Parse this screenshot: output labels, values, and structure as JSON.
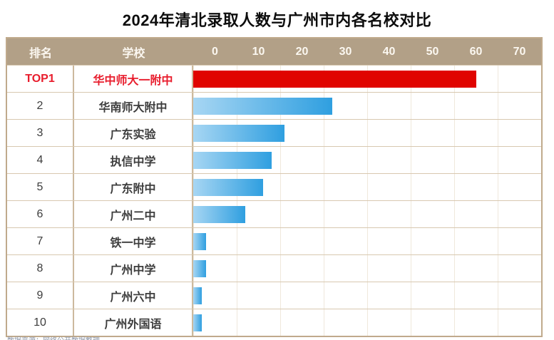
{
  "title": "2024年清北录取人数与广州市内各名校对比",
  "table": {
    "rank_header": "排名",
    "school_header": "学校"
  },
  "chart_data": {
    "type": "bar",
    "orientation": "horizontal",
    "title": "2024年清北录取人数与广州市内各名校对比",
    "ranks": [
      "TOP1",
      "2",
      "3",
      "4",
      "5",
      "6",
      "7",
      "8",
      "9",
      "10"
    ],
    "categories": [
      "华中师大一附中",
      "华南师大附中",
      "广东实验",
      "执信中学",
      "广东附中",
      "广州二中",
      "铁一中学",
      "广州中学",
      "广州六中",
      "广州外国语"
    ],
    "values": [
      65,
      32,
      21,
      18,
      16,
      12,
      3,
      3,
      2,
      2
    ],
    "axis_ticks": [
      "0",
      "10",
      "20",
      "30",
      "40",
      "50",
      "60",
      "70"
    ],
    "axis_max": 80,
    "grid": true,
    "legend": false,
    "highlight_index": 0
  },
  "footnote": "数据来源：网络公开数据整理",
  "colors": {
    "header_bg": "#b2a087",
    "header_text": "#fbf7f0",
    "border_outer": "#c0aa8c",
    "border_inner": "#ccb99d",
    "row_line": "#d8c8b0",
    "grid_line": "#efe8dc",
    "bar_light": "#a7d6f3",
    "bar_dark": "#2f9fe0",
    "top1_bar": "#e00400",
    "top1_text": "#e81c2c",
    "text": "#3d3d3d"
  }
}
